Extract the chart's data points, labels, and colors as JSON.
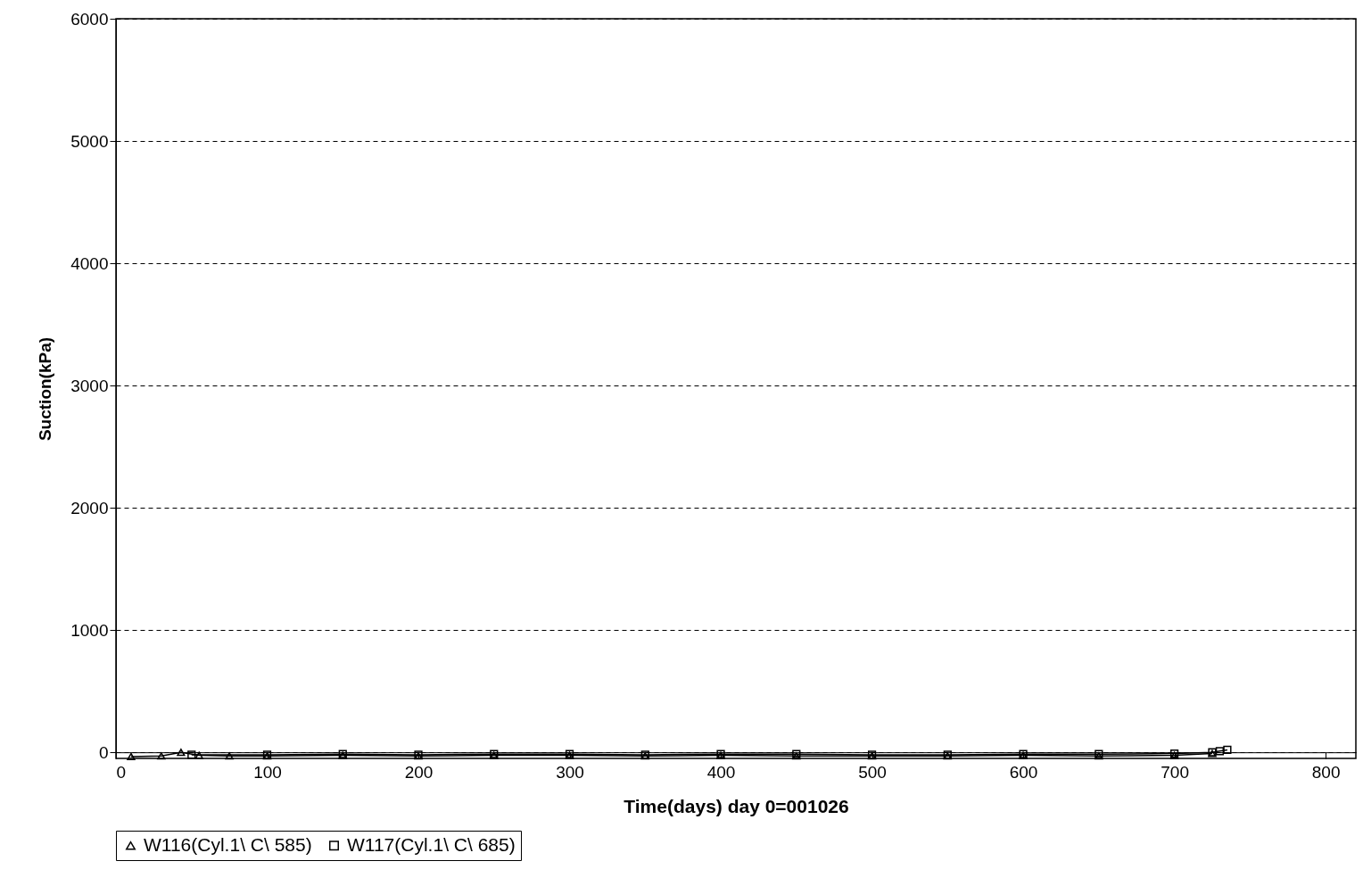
{
  "chart_data": {
    "type": "line",
    "xlabel": "Time(days)  day 0=001026",
    "ylabel": "Suction(kPa)",
    "xlim": [
      0,
      820
    ],
    "xticks": [
      0,
      100,
      200,
      300,
      400,
      500,
      600,
      700,
      800
    ],
    "ylim": [
      -50,
      6000
    ],
    "yticks": [
      0,
      1000,
      2000,
      3000,
      4000,
      5000,
      6000
    ],
    "grid": "y",
    "legend": "bottom",
    "line_style": "solid",
    "series": [
      {
        "name": "W116(Cyl.1\\ C\\ 585)",
        "color": "#000000",
        "marker": "triangle",
        "x": [
          10,
          30,
          43,
          55,
          75,
          100,
          150,
          200,
          250,
          300,
          350,
          400,
          450,
          500,
          550,
          600,
          650,
          700,
          725
        ],
        "values": [
          -35,
          -30,
          0,
          -25,
          -30,
          -30,
          -25,
          -30,
          -25,
          -25,
          -30,
          -25,
          -30,
          -30,
          -30,
          -25,
          -30,
          -25,
          -10
        ]
      },
      {
        "name": "W117(Cyl.1\\ C\\ 685)",
        "color": "#000000",
        "marker": "square",
        "x": [
          50,
          100,
          150,
          200,
          250,
          300,
          350,
          400,
          450,
          500,
          550,
          600,
          650,
          700,
          725,
          730,
          735
        ],
        "values": [
          -20,
          -20,
          -15,
          -20,
          -15,
          -15,
          -20,
          -15,
          -15,
          -20,
          -20,
          -15,
          -15,
          -10,
          0,
          10,
          20
        ]
      }
    ]
  }
}
